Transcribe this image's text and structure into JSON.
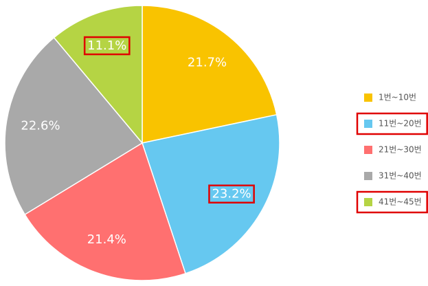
{
  "chart_data": {
    "type": "pie",
    "categories": [
      "1번~10번",
      "11번~20번",
      "21번~30번",
      "31번~40번",
      "41번~45번"
    ],
    "values": [
      21.7,
      23.2,
      21.4,
      22.6,
      11.1
    ],
    "value_labels": [
      "21.7%",
      "23.2%",
      "21.4%",
      "22.6%",
      "11.1%"
    ],
    "colors": [
      "#f9c300",
      "#66c8f0",
      "#ff7070",
      "#a9a9a9",
      "#b5d444"
    ],
    "legend": "right"
  }
}
